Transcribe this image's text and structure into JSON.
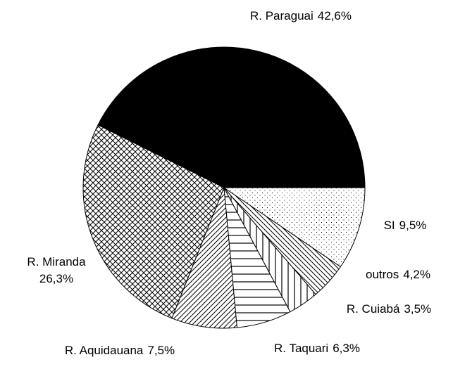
{
  "chart_data": {
    "type": "pie",
    "categories": [
      "R. Paraguai",
      "R. Miranda",
      "R. Aquidauana",
      "R. Taquari",
      "R. Cuiabá",
      "outros",
      "SI"
    ],
    "values": [
      42.6,
      26.3,
      7.5,
      6.3,
      3.5,
      4.2,
      9.5
    ],
    "value_labels": [
      "42,6%",
      "26,3%",
      "7,5%",
      "6,3%",
      "3,5%",
      "4,2%",
      "9,5%"
    ],
    "patterns": [
      "solid",
      "crosshatch",
      "diagonal-up",
      "horizontal",
      "vertical",
      "diagonal-down",
      "dots"
    ],
    "color": "#000000"
  }
}
